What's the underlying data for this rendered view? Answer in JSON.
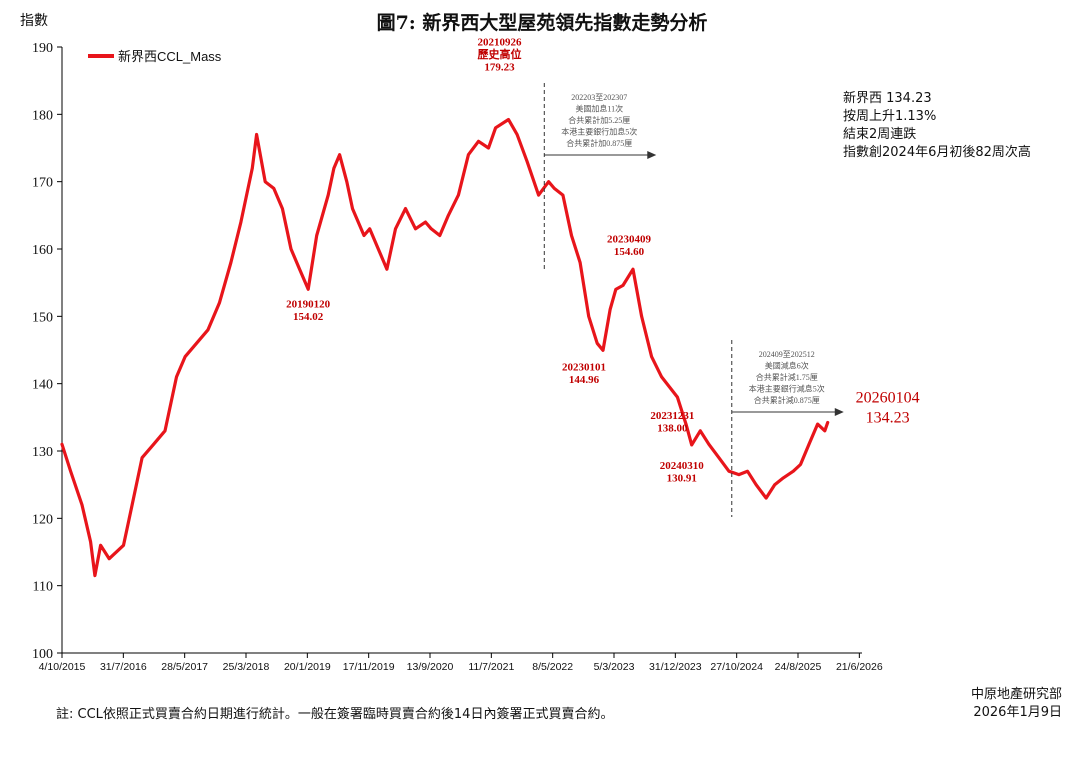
{
  "title": "圖7: 新界西大型屋苑領先指數走勢分析",
  "y_unit": "指數",
  "summary": [
    "新界西 134.23",
    "按周上升1.13%",
    "結束2周連跌",
    "指數創2024年6月初後82周次高"
  ],
  "footnote": "註: CCL依照正式買賣合約日期進行統計。一般在簽署臨時買賣合約後14日內簽署正式買賣合約。",
  "credit": {
    "org": "中原地產研究部",
    "date": "2026年1月9日"
  },
  "colors": {
    "series": "#e8151b",
    "annotation": "#c00000"
  },
  "chart_data": {
    "type": "line",
    "ylim": [
      100,
      190
    ],
    "yticks": [
      100,
      110,
      120,
      130,
      140,
      150,
      160,
      170,
      180,
      190
    ],
    "xticks": [
      "4/10/2015",
      "31/7/2016",
      "28/5/2017",
      "25/3/2018",
      "20/1/2019",
      "17/11/2019",
      "13/9/2020",
      "11/7/2021",
      "8/5/2022",
      "5/3/2023",
      "31/12/2023",
      "27/10/2024",
      "24/8/2025",
      "21/6/2026"
    ],
    "legend": {
      "position": "top-left",
      "label": "新界西CCL_Mass"
    },
    "series": [
      {
        "name": "新界西CCL_Mass",
        "points": [
          [
            "2015-10-04",
            131
          ],
          [
            "2015-11-15",
            127
          ],
          [
            "2016-01-10",
            122
          ],
          [
            "2016-02-21",
            116.5
          ],
          [
            "2016-03-13",
            111.5
          ],
          [
            "2016-04-10",
            116
          ],
          [
            "2016-05-22",
            114
          ],
          [
            "2016-07-31",
            116
          ],
          [
            "2016-09-04",
            121
          ],
          [
            "2016-10-30",
            129
          ],
          [
            "2016-12-25",
            131
          ],
          [
            "2017-02-19",
            133
          ],
          [
            "2017-04-16",
            141
          ],
          [
            "2017-05-28",
            144
          ],
          [
            "2017-07-23",
            146
          ],
          [
            "2017-09-17",
            148
          ],
          [
            "2017-11-12",
            152
          ],
          [
            "2018-01-07",
            158
          ],
          [
            "2018-02-25",
            164
          ],
          [
            "2018-04-22",
            172
          ],
          [
            "2018-05-13",
            177
          ],
          [
            "2018-06-24",
            170
          ],
          [
            "2018-08-05",
            169
          ],
          [
            "2018-09-16",
            166
          ],
          [
            "2018-10-28",
            160
          ],
          [
            "2018-12-09",
            157
          ],
          [
            "2019-01-20",
            154.02
          ],
          [
            "2019-03-03",
            162
          ],
          [
            "2019-04-28",
            168
          ],
          [
            "2019-05-26",
            172
          ],
          [
            "2019-06-23",
            174
          ],
          [
            "2019-07-28",
            170
          ],
          [
            "2019-08-25",
            166
          ],
          [
            "2019-10-20",
            162
          ],
          [
            "2019-11-17",
            163
          ],
          [
            "2019-12-29",
            160
          ],
          [
            "2020-02-09",
            157
          ],
          [
            "2020-03-22",
            163
          ],
          [
            "2020-05-10",
            166
          ],
          [
            "2020-06-28",
            163
          ],
          [
            "2020-08-16",
            164
          ],
          [
            "2020-09-13",
            163
          ],
          [
            "2020-10-25",
            162
          ],
          [
            "2020-12-06",
            165
          ],
          [
            "2021-01-24",
            168
          ],
          [
            "2021-03-14",
            174
          ],
          [
            "2021-05-02",
            176
          ],
          [
            "2021-06-20",
            175
          ],
          [
            "2021-07-25",
            178
          ],
          [
            "2021-09-26",
            179.23
          ],
          [
            "2021-11-07",
            177
          ],
          [
            "2021-12-26",
            173
          ],
          [
            "2022-02-20",
            168
          ],
          [
            "2022-04-10",
            170
          ],
          [
            "2022-05-08",
            169
          ],
          [
            "2022-06-19",
            168
          ],
          [
            "2022-07-31",
            162
          ],
          [
            "2022-09-11",
            158
          ],
          [
            "2022-10-23",
            150
          ],
          [
            "2022-12-04",
            146
          ],
          [
            "2023-01-01",
            144.96
          ],
          [
            "2023-02-05",
            151
          ],
          [
            "2023-03-05",
            154
          ],
          [
            "2023-04-09",
            154.6
          ],
          [
            "2023-05-28",
            157
          ],
          [
            "2023-07-09",
            150
          ],
          [
            "2023-08-27",
            144
          ],
          [
            "2023-10-15",
            141
          ],
          [
            "2023-12-31",
            138
          ],
          [
            "2024-02-11",
            134
          ],
          [
            "2024-03-10",
            130.91
          ],
          [
            "2024-04-21",
            133
          ],
          [
            "2024-06-02",
            131
          ],
          [
            "2024-07-21",
            129
          ],
          [
            "2024-09-08",
            127
          ],
          [
            "2024-10-27",
            126.5
          ],
          [
            "2024-12-08",
            127
          ],
          [
            "2025-01-19",
            125
          ],
          [
            "2025-03-09",
            123
          ],
          [
            "2025-04-20",
            125
          ],
          [
            "2025-06-01",
            126
          ],
          [
            "2025-07-20",
            127
          ],
          [
            "2025-08-24",
            128
          ],
          [
            "2025-10-05",
            131
          ],
          [
            "2025-11-16",
            134
          ],
          [
            "2025-12-21",
            133
          ],
          [
            "2026-01-04",
            134.23
          ]
        ]
      }
    ],
    "annotations": [
      {
        "date": "2019-01-20",
        "lines": [
          "20190120",
          "154.02"
        ]
      },
      {
        "date": "2021-09-26",
        "lines": [
          "20210926",
          "歷史高位",
          "179.23"
        ]
      },
      {
        "date": "2023-01-01",
        "lines": [
          "20230101",
          "144.96"
        ]
      },
      {
        "date": "2023-04-09",
        "lines": [
          "20230409",
          "154.60"
        ]
      },
      {
        "date": "2023-12-31",
        "lines": [
          "20231231",
          "138.00"
        ]
      },
      {
        "date": "2024-03-10",
        "lines": [
          "20240310",
          "130.91"
        ]
      },
      {
        "date": "2026-01-04",
        "lines": [
          "20260104",
          "134.23"
        ]
      }
    ],
    "rate_notes": [
      {
        "date": "2022-03-20",
        "lines": [
          "202203至202307",
          "美國加息11次",
          "合共累計加5.25厘",
          "本港主要銀行加息5次",
          "合共累計加0.875厘"
        ]
      },
      {
        "date": "2024-09-22",
        "lines": [
          "202409至202512",
          "美國減息6次",
          "合共累計減1.75厘",
          "本港主要銀行減息5次",
          "合共累計減0.875厘"
        ]
      }
    ]
  }
}
